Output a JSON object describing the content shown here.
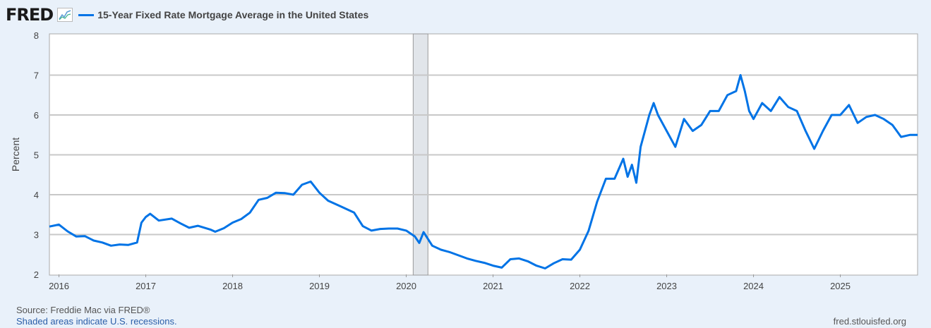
{
  "header": {
    "logo": "FRED",
    "logo_icon": "line-chart-icon",
    "legend_label": "15-Year Fixed Rate Mortgage Average in the United States"
  },
  "footer": {
    "source": "Source: Freddie Mac via FRED®",
    "recession_note": "Shaded areas indicate U.S. recessions.",
    "site": "fred.stlouisfed.org"
  },
  "colors": {
    "series": "#0073e6",
    "recession": "#e1e5ea",
    "background": "#e9f1fa"
  },
  "chart_data": {
    "type": "line",
    "title": "15-Year Fixed Rate Mortgage Average in the United States",
    "xlabel": "",
    "ylabel": "Percent",
    "ylim": [
      2,
      8
    ],
    "xlim": [
      2015.89,
      2025.89
    ],
    "yticks": [
      "2",
      "3",
      "4",
      "5",
      "6",
      "7",
      "8"
    ],
    "xticks": [
      "2016",
      "2017",
      "2018",
      "2019",
      "2020",
      "2021",
      "2022",
      "2023",
      "2024",
      "2025"
    ],
    "grid": true,
    "recessions": [
      [
        2020.08,
        2020.25
      ]
    ],
    "series": [
      {
        "name": "15-Year Fixed Rate Mortgage Average in the United States",
        "x": [
          2015.89,
          2016.0,
          2016.1,
          2016.2,
          2016.3,
          2016.4,
          2016.5,
          2016.6,
          2016.7,
          2016.8,
          2016.9,
          2016.95,
          2017.0,
          2017.05,
          2017.15,
          2017.3,
          2017.4,
          2017.5,
          2017.6,
          2017.75,
          2017.8,
          2017.9,
          2018.0,
          2018.1,
          2018.2,
          2018.3,
          2018.4,
          2018.5,
          2018.6,
          2018.7,
          2018.8,
          2018.9,
          2019.0,
          2019.1,
          2019.25,
          2019.4,
          2019.5,
          2019.6,
          2019.7,
          2019.8,
          2019.9,
          2020.0,
          2020.1,
          2020.15,
          2020.2,
          2020.3,
          2020.4,
          2020.5,
          2020.6,
          2020.7,
          2020.8,
          2020.9,
          2021.0,
          2021.1,
          2021.2,
          2021.3,
          2021.4,
          2021.5,
          2021.6,
          2021.7,
          2021.8,
          2021.9,
          2022.0,
          2022.1,
          2022.2,
          2022.3,
          2022.4,
          2022.5,
          2022.55,
          2022.6,
          2022.65,
          2022.7,
          2022.8,
          2022.85,
          2022.9,
          2023.0,
          2023.1,
          2023.2,
          2023.3,
          2023.4,
          2023.5,
          2023.6,
          2023.7,
          2023.8,
          2023.85,
          2023.9,
          2023.95,
          2024.0,
          2024.1,
          2024.2,
          2024.3,
          2024.4,
          2024.5,
          2024.6,
          2024.7,
          2024.8,
          2024.9,
          2025.0,
          2025.1,
          2025.2,
          2025.3,
          2025.4,
          2025.5,
          2025.6,
          2025.7,
          2025.8,
          2025.89
        ],
        "values": [
          3.2,
          3.25,
          3.08,
          2.95,
          2.96,
          2.85,
          2.8,
          2.72,
          2.75,
          2.74,
          2.8,
          3.3,
          3.44,
          3.52,
          3.35,
          3.4,
          3.28,
          3.17,
          3.22,
          3.12,
          3.07,
          3.16,
          3.3,
          3.39,
          3.55,
          3.87,
          3.92,
          4.05,
          4.04,
          4.0,
          4.25,
          4.33,
          4.05,
          3.85,
          3.7,
          3.55,
          3.21,
          3.1,
          3.14,
          3.15,
          3.15,
          3.1,
          2.95,
          2.79,
          3.06,
          2.72,
          2.62,
          2.56,
          2.48,
          2.4,
          2.34,
          2.29,
          2.22,
          2.17,
          2.38,
          2.4,
          2.33,
          2.22,
          2.15,
          2.28,
          2.38,
          2.37,
          2.62,
          3.09,
          3.83,
          4.4,
          4.4,
          4.9,
          4.45,
          4.75,
          4.3,
          5.2,
          6.0,
          6.3,
          6.0,
          5.6,
          5.2,
          5.9,
          5.6,
          5.75,
          6.1,
          6.1,
          6.5,
          6.6,
          7.0,
          6.6,
          6.1,
          5.9,
          6.3,
          6.1,
          6.45,
          6.2,
          6.1,
          5.6,
          5.15,
          5.6,
          6.0,
          6.0,
          6.25,
          5.8,
          5.95,
          6.0,
          5.9,
          5.75,
          5.45,
          5.5,
          5.5
        ]
      }
    ]
  }
}
